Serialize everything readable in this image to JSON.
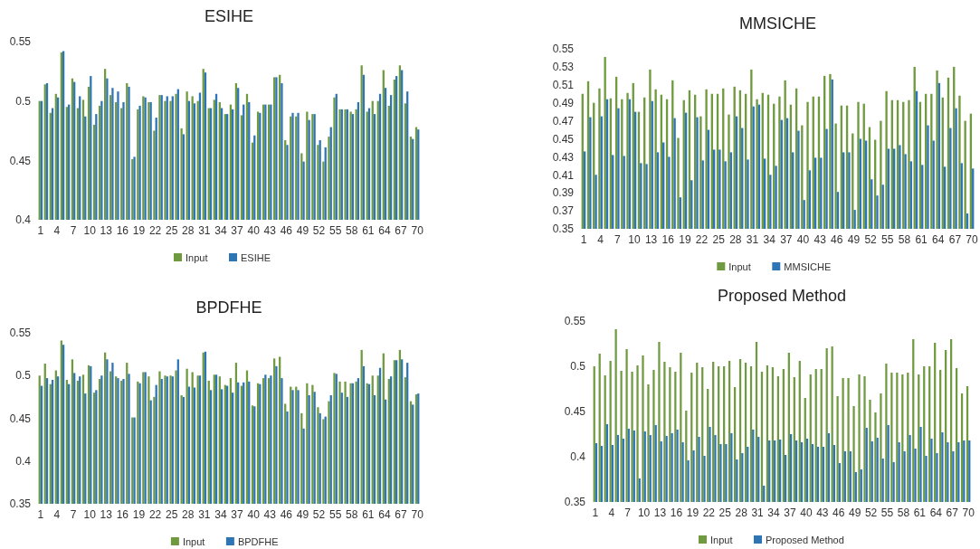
{
  "chart_data": [
    {
      "type": "bar",
      "title": "ESIHE",
      "categories": [
        "1",
        null,
        null,
        "4",
        null,
        null,
        "7",
        null,
        null,
        "10",
        null,
        null,
        "13",
        null,
        null,
        "16",
        null,
        null,
        "19",
        null,
        null,
        "22",
        null,
        null,
        "25",
        null,
        null,
        "28",
        null,
        null,
        "31",
        null,
        null,
        "34",
        null,
        null,
        "37",
        null,
        null,
        "40",
        null,
        null,
        "43",
        null,
        null,
        "46",
        null,
        null,
        "49",
        null,
        null,
        "52",
        null,
        null,
        "55",
        null,
        null,
        "58",
        null,
        null,
        "61",
        null,
        null,
        "64",
        null,
        null,
        "67",
        null,
        null,
        "70"
      ],
      "series": [
        {
          "name": "Input",
          "color": "#6f9a3f",
          "values": [
            0.5,
            0.514,
            0.49,
            0.506,
            0.541,
            0.495,
            0.519,
            0.494,
            0.501,
            0.512,
            0.48,
            0.496,
            0.527,
            0.505,
            0.499,
            0.494,
            0.515,
            0.451,
            0.493,
            0.504,
            0.499,
            0.475,
            0.505,
            0.5,
            0.5,
            0.506,
            0.477,
            0.508,
            0.504,
            0.5,
            0.527,
            0.494,
            0.501,
            0.499,
            0.489,
            0.497,
            0.515,
            0.488,
            0.506,
            0.465,
            0.491,
            0.497,
            0.497,
            0.52,
            0.522,
            0.467,
            0.487,
            0.487,
            0.456,
            0.491,
            0.489,
            0.463,
            0.449,
            0.47,
            0.503,
            0.493,
            0.493,
            0.491,
            0.493,
            0.53,
            0.491,
            0.5,
            0.5,
            0.526,
            0.496,
            0.518,
            0.53,
            0.498,
            0.47,
            0.478
          ]
        },
        {
          "name": "ESIHE",
          "color": "#2e75b6",
          "values": [
            0.5,
            0.515,
            0.494,
            0.503,
            0.542,
            0.497,
            0.516,
            0.504,
            0.487,
            0.521,
            0.489,
            0.5,
            0.519,
            0.511,
            0.508,
            0.499,
            0.512,
            0.453,
            0.496,
            0.503,
            0.499,
            0.486,
            0.505,
            0.504,
            0.504,
            0.51,
            0.472,
            0.5,
            0.498,
            0.507,
            0.524,
            0.494,
            0.506,
            0.494,
            0.489,
            0.493,
            0.511,
            0.497,
            0.499,
            0.471,
            0.49,
            0.497,
            0.497,
            0.52,
            0.515,
            0.463,
            0.49,
            0.49,
            0.449,
            0.484,
            0.489,
            0.467,
            0.461,
            0.478,
            0.506,
            0.493,
            0.493,
            0.489,
            0.499,
            0.522,
            0.494,
            0.489,
            0.506,
            0.511,
            0.505,
            0.521,
            0.526,
            0.508,
            0.468,
            0.476
          ]
        }
      ],
      "ylim": [
        0.4,
        0.55
      ],
      "yticks": [
        0.4,
        0.45,
        0.5,
        0.55
      ],
      "legend": "bottom"
    },
    {
      "type": "bar",
      "title": "MMSICHE",
      "categories": [
        "1",
        null,
        null,
        "4",
        null,
        null,
        "7",
        null,
        null,
        "10",
        null,
        null,
        "13",
        null,
        null,
        "16",
        null,
        null,
        "19",
        null,
        null,
        "22",
        null,
        null,
        "25",
        null,
        null,
        "28",
        null,
        null,
        "31",
        null,
        null,
        "34",
        null,
        null,
        "37",
        null,
        null,
        "40",
        null,
        null,
        "43",
        null,
        null,
        "46",
        null,
        null,
        "49",
        null,
        null,
        "52",
        null,
        null,
        "55",
        null,
        null,
        "58",
        null,
        null,
        "61",
        null,
        null,
        "64",
        null,
        null,
        "67",
        null,
        null,
        "70"
      ],
      "series": [
        {
          "name": "Input",
          "color": "#6f9a3f",
          "values": [
            0.5,
            0.514,
            0.49,
            0.506,
            0.541,
            0.495,
            0.519,
            0.494,
            0.501,
            0.512,
            0.48,
            0.496,
            0.527,
            0.505,
            0.499,
            0.494,
            0.515,
            0.451,
            0.493,
            0.504,
            0.499,
            0.475,
            0.505,
            0.5,
            0.5,
            0.506,
            0.477,
            0.508,
            0.504,
            0.5,
            0.527,
            0.494,
            0.501,
            0.499,
            0.489,
            0.497,
            0.515,
            0.488,
            0.506,
            0.465,
            0.491,
            0.497,
            0.497,
            0.52,
            0.522,
            0.467,
            0.487,
            0.487,
            0.456,
            0.491,
            0.489,
            0.463,
            0.449,
            0.47,
            0.503,
            0.493,
            0.493,
            0.491,
            0.493,
            0.53,
            0.491,
            0.5,
            0.5,
            0.526,
            0.496,
            0.518,
            0.53,
            0.498,
            0.47,
            0.478
          ]
        },
        {
          "name": "MMSICHE",
          "color": "#2e75b6",
          "values": [
            0.436,
            0.474,
            0.41,
            0.475,
            0.494,
            0.432,
            0.484,
            0.431,
            0.494,
            0.48,
            0.423,
            0.422,
            0.492,
            0.435,
            0.446,
            0.43,
            0.473,
            0.385,
            0.479,
            0.404,
            0.474,
            0.426,
            0.46,
            0.438,
            0.438,
            0.425,
            0.435,
            0.475,
            0.462,
            0.427,
            0.486,
            0.488,
            0.428,
            0.41,
            0.42,
            0.471,
            0.473,
            0.435,
            0.459,
            0.382,
            0.415,
            0.429,
            0.429,
            0.461,
            0.516,
            0.391,
            0.435,
            0.435,
            0.371,
            0.45,
            0.448,
            0.405,
            0.387,
            0.399,
            0.439,
            0.439,
            0.443,
            0.433,
            0.425,
            0.503,
            0.421,
            0.465,
            0.448,
            0.512,
            0.419,
            0.462,
            0.484,
            0.423,
            0.367,
            0.417
          ]
        }
      ],
      "ylim": [
        0.35,
        0.55
      ],
      "yticks": [
        0.35,
        0.37,
        0.39,
        0.41,
        0.43,
        0.45,
        0.47,
        0.49,
        0.51,
        0.53,
        0.55
      ],
      "legend": "bottom"
    },
    {
      "type": "bar",
      "title": "BPDFHE",
      "categories": [
        "1",
        null,
        null,
        "4",
        null,
        null,
        "7",
        null,
        null,
        "10",
        null,
        null,
        "13",
        null,
        null,
        "16",
        null,
        null,
        "19",
        null,
        null,
        "22",
        null,
        null,
        "25",
        null,
        null,
        "28",
        null,
        null,
        "31",
        null,
        null,
        "34",
        null,
        null,
        "37",
        null,
        null,
        "40",
        null,
        null,
        "43",
        null,
        null,
        "46",
        null,
        null,
        "49",
        null,
        null,
        "52",
        null,
        null,
        "55",
        null,
        null,
        "58",
        null,
        null,
        "61",
        null,
        null,
        "64",
        null,
        null,
        "67",
        null,
        null,
        "70"
      ],
      "series": [
        {
          "name": "Input",
          "color": "#6f9a3f",
          "values": [
            0.5,
            0.514,
            0.49,
            0.506,
            0.541,
            0.495,
            0.519,
            0.494,
            0.501,
            0.512,
            0.48,
            0.496,
            0.527,
            0.505,
            0.499,
            0.494,
            0.515,
            0.451,
            0.493,
            0.504,
            0.499,
            0.475,
            0.505,
            0.5,
            0.5,
            0.506,
            0.477,
            0.508,
            0.504,
            0.5,
            0.527,
            0.494,
            0.501,
            0.499,
            0.489,
            0.497,
            0.515,
            0.488,
            0.506,
            0.465,
            0.491,
            0.497,
            0.497,
            0.52,
            0.522,
            0.467,
            0.487,
            0.487,
            0.456,
            0.491,
            0.489,
            0.463,
            0.449,
            0.47,
            0.503,
            0.493,
            0.493,
            0.491,
            0.493,
            0.53,
            0.491,
            0.5,
            0.5,
            0.526,
            0.496,
            0.518,
            0.53,
            0.498,
            0.47,
            0.478
          ]
        },
        {
          "name": "BPDFHE",
          "color": "#2e75b6",
          "values": [
            0.488,
            0.497,
            0.495,
            0.499,
            0.536,
            0.49,
            0.503,
            0.499,
            0.479,
            0.511,
            0.483,
            0.5,
            0.519,
            0.515,
            0.497,
            0.496,
            0.502,
            0.451,
            0.491,
            0.504,
            0.471,
            0.489,
            0.496,
            0.499,
            0.499,
            0.519,
            0.475,
            0.487,
            0.486,
            0.5,
            0.528,
            0.483,
            0.501,
            0.484,
            0.488,
            0.48,
            0.492,
            0.492,
            0.493,
            0.464,
            0.49,
            0.501,
            0.5,
            0.511,
            0.497,
            0.458,
            0.483,
            0.483,
            0.438,
            0.477,
            0.481,
            0.456,
            0.452,
            0.477,
            0.502,
            0.48,
            0.475,
            0.491,
            0.497,
            0.511,
            0.49,
            0.477,
            0.509,
            0.472,
            0.499,
            0.518,
            0.519,
            0.515,
            0.466,
            0.479
          ]
        }
      ],
      "ylim": [
        0.35,
        0.55
      ],
      "yticks": [
        0.35,
        0.4,
        0.45,
        0.5,
        0.55
      ],
      "legend": "bottom"
    },
    {
      "type": "bar",
      "title": "Proposed Method",
      "categories": [
        "1",
        null,
        null,
        "4",
        null,
        null,
        "7",
        null,
        null,
        "10",
        null,
        null,
        "13",
        null,
        null,
        "16",
        null,
        null,
        "19",
        null,
        null,
        "22",
        null,
        null,
        "25",
        null,
        null,
        "28",
        null,
        null,
        "31",
        null,
        null,
        "34",
        null,
        null,
        "37",
        null,
        null,
        "40",
        null,
        null,
        "43",
        null,
        null,
        "46",
        null,
        null,
        "49",
        null,
        null,
        "52",
        null,
        null,
        "55",
        null,
        null,
        "58",
        null,
        null,
        "61",
        null,
        null,
        "64",
        null,
        null,
        "67",
        null,
        null,
        "70"
      ],
      "series": [
        {
          "name": "Input",
          "color": "#6f9a3f",
          "values": [
            0.5,
            0.514,
            0.49,
            0.506,
            0.541,
            0.495,
            0.519,
            0.494,
            0.501,
            0.512,
            0.48,
            0.496,
            0.527,
            0.505,
            0.499,
            0.494,
            0.515,
            0.451,
            0.493,
            0.504,
            0.499,
            0.475,
            0.505,
            0.5,
            0.5,
            0.506,
            0.477,
            0.508,
            0.504,
            0.5,
            0.527,
            0.494,
            0.501,
            0.499,
            0.489,
            0.497,
            0.515,
            0.488,
            0.506,
            0.465,
            0.491,
            0.497,
            0.497,
            0.52,
            0.522,
            0.467,
            0.487,
            0.487,
            0.456,
            0.491,
            0.489,
            0.463,
            0.449,
            0.47,
            0.503,
            0.493,
            0.493,
            0.491,
            0.493,
            0.53,
            0.491,
            0.5,
            0.5,
            0.526,
            0.496,
            0.518,
            0.53,
            0.498,
            0.47,
            0.478
          ]
        },
        {
          "name": "Proposed Method",
          "color": "#2e75b6",
          "values": [
            0.415,
            0.412,
            0.436,
            0.413,
            0.424,
            0.42,
            0.431,
            0.429,
            0.376,
            0.428,
            0.424,
            0.435,
            0.417,
            0.423,
            0.426,
            0.43,
            0.416,
            0.396,
            0.407,
            0.422,
            0.401,
            0.433,
            0.424,
            0.414,
            0.414,
            0.426,
            0.397,
            0.404,
            0.411,
            0.43,
            0.422,
            0.368,
            0.418,
            0.418,
            0.419,
            0.402,
            0.425,
            0.418,
            0.416,
            0.42,
            0.414,
            0.411,
            0.411,
            0.426,
            0.413,
            0.393,
            0.406,
            0.406,
            0.383,
            0.386,
            0.432,
            0.417,
            0.421,
            0.398,
            0.435,
            0.394,
            0.416,
            0.406,
            0.424,
            0.409,
            0.433,
            0.401,
            0.42,
            0.404,
            0.427,
            0.416,
            0.406,
            0.416,
            0.418,
            0.418
          ]
        }
      ],
      "ylim": [
        0.35,
        0.55
      ],
      "yticks": [
        0.35,
        0.4,
        0.45,
        0.5,
        0.55
      ],
      "legend": "bottom"
    }
  ]
}
